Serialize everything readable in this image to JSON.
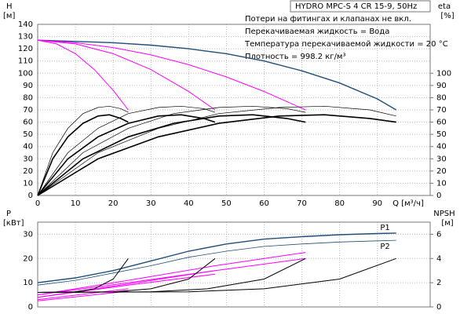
{
  "chart_data": [
    {
      "type": "line",
      "title": "HYDRO MPC-S 4 CR 15-9, 50Hz",
      "annotations": [
        "Потери на фитингах и клапанах не вкл.",
        "Перекачиваемая жидкость = Вода",
        "Температура перекачиваемой жидкости = 20 °C",
        "Плотность = 998.2 кг/м³"
      ],
      "ylabel": "H",
      "ylabel_unit": "[м]",
      "y2label": "eta",
      "y2label_unit": "[%]",
      "xlabel": "Q [м³/ч]",
      "xlim": [
        0,
        104
      ],
      "xticks": [
        0,
        10,
        20,
        30,
        40,
        50,
        60,
        70,
        80,
        90
      ],
      "ylim": [
        0,
        140
      ],
      "yticks": [
        0,
        10,
        20,
        30,
        40,
        50,
        60,
        70,
        80,
        90,
        100,
        110,
        120,
        130,
        140
      ],
      "y2lim": [
        0,
        140
      ],
      "y2ticks": [
        0,
        10,
        20,
        30,
        40,
        50,
        60,
        70,
        80,
        90,
        100
      ],
      "grid": true,
      "series": [
        {
          "color": "#1f4e79",
          "line_width": 1.4,
          "x": [
            0,
            10,
            20,
            30,
            40,
            50,
            60,
            70,
            80,
            90,
            95
          ],
          "values": [
            127,
            126,
            125,
            123,
            120,
            116,
            110,
            102,
            92,
            79,
            70
          ]
        },
        {
          "color": "#ff00ff",
          "line_width": 1,
          "x": [
            0,
            10,
            20,
            30,
            40,
            50,
            60,
            71
          ],
          "values": [
            127,
            125,
            121,
            115,
            107,
            97,
            85,
            70
          ]
        },
        {
          "color": "#ff00ff",
          "line_width": 1,
          "x": [
            0,
            10,
            20,
            30,
            40,
            47
          ],
          "values": [
            127,
            124,
            116,
            103,
            85,
            70
          ]
        },
        {
          "color": "#ff00ff",
          "line_width": 1,
          "x": [
            0,
            5,
            10,
            15,
            20,
            24
          ],
          "values": [
            127,
            124,
            116,
            103,
            86,
            70
          ]
        },
        {
          "color": "#000000",
          "line_width": 0.7,
          "axis": "y2",
          "x": [
            0,
            4,
            8,
            12,
            16,
            19,
            22,
            24
          ],
          "values": [
            0,
            35,
            55,
            67,
            72,
            73,
            71,
            68
          ]
        },
        {
          "color": "#000000",
          "line_width": 0.7,
          "axis": "y2",
          "x": [
            0,
            8,
            16,
            24,
            32,
            38,
            44,
            47
          ],
          "values": [
            0,
            35,
            55,
            67,
            72,
            73,
            71,
            68
          ]
        },
        {
          "color": "#000000",
          "line_width": 0.7,
          "axis": "y2",
          "x": [
            0,
            12,
            24,
            36,
            48,
            57,
            66,
            71
          ],
          "values": [
            0,
            35,
            55,
            67,
            72,
            73,
            71,
            68
          ]
        },
        {
          "color": "#000000",
          "line_width": 0.7,
          "axis": "y2",
          "x": [
            0,
            16,
            32,
            48,
            64,
            76,
            88,
            95
          ],
          "values": [
            0,
            35,
            55,
            67,
            72,
            73,
            70,
            65
          ]
        },
        {
          "color": "#000000",
          "line_width": 1.6,
          "axis": "y2",
          "x": [
            0,
            4,
            8,
            12,
            16,
            19,
            22,
            24
          ],
          "values": [
            0,
            30,
            48,
            59,
            65,
            66,
            63,
            60
          ]
        },
        {
          "color": "#000000",
          "line_width": 1.6,
          "axis": "y2",
          "x": [
            0,
            8,
            16,
            24,
            32,
            38,
            44,
            47
          ],
          "values": [
            0,
            30,
            48,
            59,
            65,
            66,
            63,
            60
          ]
        },
        {
          "color": "#000000",
          "line_width": 1.6,
          "axis": "y2",
          "x": [
            0,
            12,
            24,
            36,
            48,
            57,
            66,
            71
          ],
          "values": [
            0,
            30,
            48,
            59,
            65,
            66,
            63,
            60
          ]
        },
        {
          "color": "#000000",
          "line_width": 1.6,
          "axis": "y2",
          "x": [
            0,
            16,
            32,
            48,
            64,
            76,
            88,
            95
          ],
          "values": [
            0,
            30,
            48,
            59,
            65,
            66,
            63,
            60
          ]
        }
      ]
    },
    {
      "type": "line",
      "ylabel": "P",
      "ylabel_unit": "[кВт]",
      "y2label": "NPSH",
      "y2label_unit": "[м]",
      "xlim": [
        0,
        104
      ],
      "ylim": [
        0,
        35
      ],
      "yticks": [
        0,
        10,
        20,
        30
      ],
      "y2lim": [
        0,
        7
      ],
      "y2ticks": [
        0,
        2,
        4,
        6
      ],
      "grid": true,
      "series": [
        {
          "name": "P1",
          "color": "#1f4e79",
          "line_width": 1.4,
          "x": [
            0,
            10,
            20,
            30,
            40,
            50,
            60,
            70,
            80,
            90,
            95
          ],
          "values": [
            10,
            12,
            15,
            19,
            23,
            26,
            28,
            29,
            29.8,
            30.3,
            30.5
          ]
        },
        {
          "name": "P2",
          "color": "#1f4e79",
          "line_width": 0.8,
          "x": [
            0,
            10,
            20,
            30,
            40,
            50,
            60,
            70,
            80,
            90,
            95
          ],
          "values": [
            9,
            11,
            14,
            17,
            20.5,
            23,
            25,
            26,
            26.8,
            27.3,
            27.5
          ]
        },
        {
          "color": "#ff00ff",
          "line_width": 1,
          "x": [
            0,
            24,
            47,
            71
          ],
          "values": [
            5,
            11,
            17,
            22.5
          ]
        },
        {
          "color": "#ff00ff",
          "line_width": 1,
          "x": [
            0,
            24,
            47,
            71
          ],
          "values": [
            4,
            9.5,
            15,
            20
          ]
        },
        {
          "color": "#ff00ff",
          "line_width": 1,
          "x": [
            0,
            24,
            47
          ],
          "values": [
            5,
            10,
            15
          ]
        },
        {
          "color": "#ff00ff",
          "line_width": 1,
          "x": [
            0,
            24,
            47
          ],
          "values": [
            4,
            9,
            13.5
          ]
        },
        {
          "color": "#ff00ff",
          "line_width": 1,
          "x": [
            0,
            24
          ],
          "values": [
            3,
            7.5
          ]
        },
        {
          "color": "#ff00ff",
          "line_width": 1,
          "x": [
            0,
            24
          ],
          "values": [
            2.5,
            6.5
          ]
        },
        {
          "color": "#000000",
          "line_width": 1,
          "axis": "y2",
          "x": [
            0,
            10,
            15,
            20,
            24
          ],
          "values": [
            1.2,
            1.25,
            1.5,
            2.3,
            4
          ]
        },
        {
          "color": "#000000",
          "line_width": 1,
          "axis": "y2",
          "x": [
            0,
            20,
            30,
            40,
            47
          ],
          "values": [
            1.2,
            1.25,
            1.5,
            2.3,
            4
          ]
        },
        {
          "color": "#000000",
          "line_width": 1,
          "axis": "y2",
          "x": [
            0,
            30,
            45,
            60,
            71
          ],
          "values": [
            1.2,
            1.25,
            1.5,
            2.3,
            4
          ]
        },
        {
          "color": "#000000",
          "line_width": 1,
          "axis": "y2",
          "x": [
            0,
            40,
            60,
            80,
            95
          ],
          "values": [
            1.2,
            1.25,
            1.5,
            2.3,
            4
          ]
        }
      ]
    }
  ]
}
